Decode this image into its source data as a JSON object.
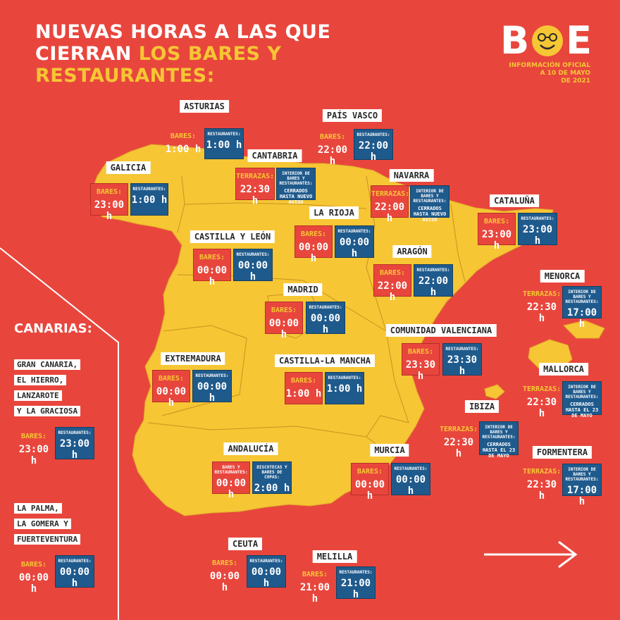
{
  "title": {
    "line1": "NUEVAS HORAS A LAS QUE",
    "line2_white": "CIERRAN",
    "line2_yellow": "LOS BARES Y",
    "line3_yellow": "RESTAURANTES:"
  },
  "logo": {
    "word_left": "B",
    "word_right": "E",
    "sub1": "INFORMACIÓN OFICIAL",
    "sub2": "A 10 DE MAYO",
    "sub3": "DE 2021"
  },
  "colors": {
    "background": "#e8463d",
    "land": "#f6c634",
    "blue": "#1f5a8c",
    "white": "#ffffff"
  },
  "regions": {
    "asturias": {
      "name": "ASTURIAS",
      "a_cap": "BARES:",
      "a_val": "1:00 h",
      "b_cap": "RESTAURANTES:",
      "b_val": "1:00 h"
    },
    "paisvasco": {
      "name": "PAÍS VASCO",
      "a_cap": "BARES:",
      "a_val": "22:00 h",
      "b_cap": "RESTAURANTES:",
      "b_val": "22:00 h"
    },
    "cantabria": {
      "name": "CANTABRIA",
      "a_cap": "TERRAZAS:",
      "a_val": "22:30 h",
      "b_cap": "INTERIOR DE BARES Y RESTAURANTES:",
      "b_val": "CERRADOS HASTA NUEVO AVISO"
    },
    "galicia": {
      "name": "GALICIA",
      "a_cap": "BARES:",
      "a_val": "23:00 h",
      "b_cap": "RESTAURANTES:",
      "b_val": "1:00 h"
    },
    "navarra": {
      "name": "NAVARRA",
      "a_cap": "TERRAZAS:",
      "a_val": "22:00 h",
      "b_cap": "INTERIOR DE BARES Y RESTAURANTES:",
      "b_val": "CERRADOS HASTA NUEVO AVISO"
    },
    "cataluna": {
      "name": "CATALUÑA",
      "a_cap": "BARES:",
      "a_val": "23:00 h",
      "b_cap": "RESTAURANTES:",
      "b_val": "23:00 h"
    },
    "larioja": {
      "name": "LA RIOJA",
      "a_cap": "BARES:",
      "a_val": "00:00 h",
      "b_cap": "RESTAURANTES:",
      "b_val": "00:00 h"
    },
    "castillaleon": {
      "name": "CASTILLA Y LEÓN",
      "a_cap": "BARES:",
      "a_val": "00:00 h",
      "b_cap": "RESTAURANTES:",
      "b_val": "00:00 h"
    },
    "aragon": {
      "name": "ARAGÓN",
      "a_cap": "BARES:",
      "a_val": "22:00 h",
      "b_cap": "RESTAURANTES:",
      "b_val": "22:00 h"
    },
    "menorca": {
      "name": "MENORCA",
      "a_cap": "TERRAZAS:",
      "a_val": "22:30 h",
      "b_cap": "INTERIOR DE BARES Y RESTAURANTES:",
      "b_val": "17:00 h"
    },
    "madrid": {
      "name": "MADRID",
      "a_cap": "BARES:",
      "a_val": "00:00 h",
      "b_cap": "RESTAURANTES:",
      "b_val": "00:00 h"
    },
    "valenciana": {
      "name": "COMUNIDAD VALENCIANA",
      "a_cap": "BARES:",
      "a_val": "23:30 h",
      "b_cap": "RESTAURANTES:",
      "b_val": "23:30 h"
    },
    "extremadura": {
      "name": "EXTREMADURA",
      "a_cap": "BARES:",
      "a_val": "00:00 h",
      "b_cap": "RESTAURANTES:",
      "b_val": "00:00 h"
    },
    "castillamancha": {
      "name": "CASTILLA-LA MANCHA",
      "a_cap": "BARES:",
      "a_val": "1:00 h",
      "b_cap": "RESTAURANTES:",
      "b_val": "1:00 h"
    },
    "mallorca": {
      "name": "MALLORCA",
      "a_cap": "TERRAZAS:",
      "a_val": "22:30 h",
      "b_cap": "INTERIOR DE BARES Y RESTAURANTES:",
      "b_val": "CERRADOS HASTA EL 23 DE MAYO"
    },
    "ibiza": {
      "name": "IBIZA",
      "a_cap": "TERRAZAS:",
      "a_val": "22:30 h",
      "b_cap": "INTERIOR DE BARES Y RESTAURANTES:",
      "b_val": "CERRADOS HASTA EL 23 DE MAYO"
    },
    "andalucia": {
      "name": "ANDALUCÍA",
      "a_cap": "BARES Y RESTAURANTES:",
      "a_val": "00:00 h",
      "b_cap": "DISCOTECAS Y BARES DE COPAS:",
      "b_val": "2:00 h"
    },
    "murcia": {
      "name": "MURCIA",
      "a_cap": "BARES:",
      "a_val": "00:00 h",
      "b_cap": "RESTAURANTES:",
      "b_val": "00:00 h"
    },
    "formentera": {
      "name": "FORMENTERA",
      "a_cap": "TERRAZAS:",
      "a_val": "22:30 h",
      "b_cap": "INTERIOR DE BARES Y RESTAURANTES:",
      "b_val": "17:00 h"
    },
    "ceuta": {
      "name": "CEUTA",
      "a_cap": "BARES:",
      "a_val": "00:00 h",
      "b_cap": "RESTAURANTES:",
      "b_val": "00:00 h"
    },
    "melilla": {
      "name": "MELILLA",
      "a_cap": "BARES:",
      "a_val": "21:00 h",
      "b_cap": "RESTAURANTES:",
      "b_val": "21:00 h"
    }
  },
  "canarias": {
    "title": "CANARIAS:",
    "group1": [
      "GRAN CANARIA,",
      "EL HIERRO,",
      "LANZAROTE",
      "Y LA GRACIOSA"
    ],
    "group1_a_cap": "BARES:",
    "group1_a_val": "23:00 h",
    "group1_b_cap": "RESTAURANTES:",
    "group1_b_val": "23:00 h",
    "group2": [
      "LA PALMA,",
      "LA GOMERA Y",
      "FUERTEVENTURA"
    ],
    "group2_a_cap": "BARES:",
    "group2_a_val": "00:00 h",
    "group2_b_cap": "RESTAURANTES:",
    "group2_b_val": "00:00 h"
  },
  "icons": {
    "next": "arrow-right-icon",
    "logo_o": "smiley-icon"
  }
}
